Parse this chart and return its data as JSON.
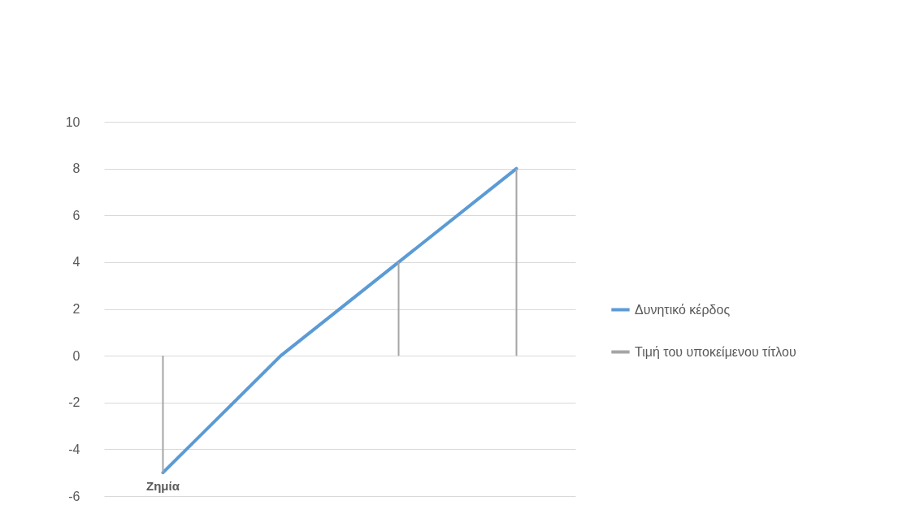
{
  "chart_data": {
    "type": "line",
    "categories": [
      null,
      null,
      null,
      null
    ],
    "series": [
      {
        "name": "Δυνητικό κέρδος",
        "color": "#5b9bd5",
        "values": [
          -5,
          0,
          4,
          8
        ]
      },
      {
        "name": "Τιμή του υποκείμενου τίτλου",
        "type": "bar",
        "color": "#a5a5a5",
        "values": [
          -5,
          0,
          4,
          8
        ]
      }
    ],
    "ylim": [
      -6,
      10
    ],
    "yticks": [
      -6,
      -4,
      -2,
      0,
      2,
      4,
      6,
      8,
      10
    ],
    "grid": "y",
    "legend": "right",
    "tick_labels": "y",
    "annotations": [
      "Ζημία"
    ]
  }
}
